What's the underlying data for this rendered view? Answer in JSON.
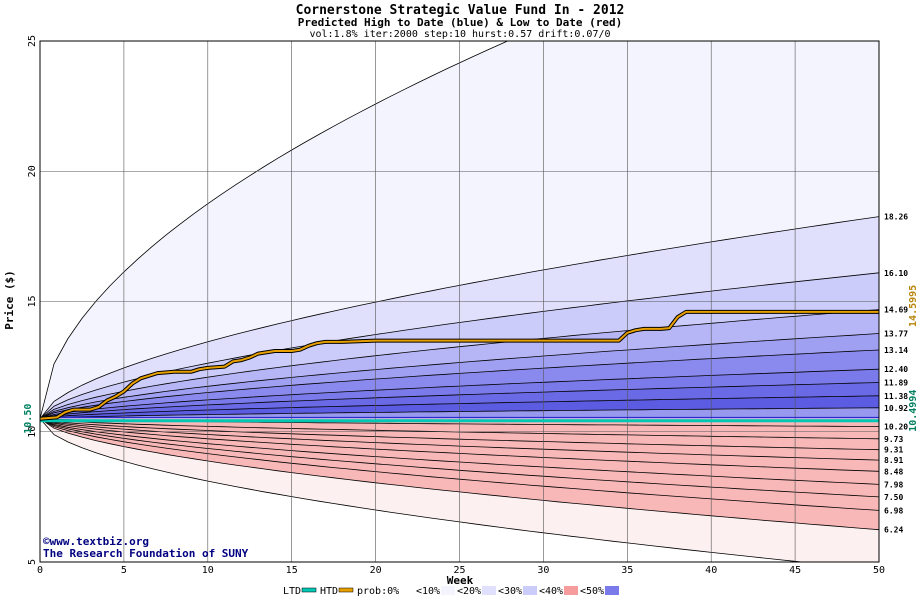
{
  "chart_data": {
    "type": "area",
    "title": "Cornerstone Strategic Value Fund In - 2012",
    "subtitle": "Predicted High to Date (blue) &  Low to Date (red)",
    "params": "vol:1.8% iter:2000 step:10 hurst:0.57 drift:0.07/0",
    "xlabel": "Week",
    "ylabel": "Price ($)",
    "xlim": [
      0,
      50
    ],
    "ylim": [
      5,
      25
    ],
    "x_ticks": [
      "0",
      "5",
      "10",
      "15",
      "20",
      "25",
      "30",
      "35",
      "40",
      "45",
      "50"
    ],
    "y_ticks": [
      "5",
      "10",
      "15",
      "20",
      "25"
    ],
    "grid": true,
    "start_price": 10.5,
    "start_label": "10.50",
    "htd_price": 10.4994,
    "htd_label": "10.4994",
    "htd_label_color": "#008060",
    "ltd_price": 10.55,
    "ltd_htd_colors": {
      "ltd": "#00c8b4",
      "htd": "#2a2ad0"
    },
    "path_label": "14.5995",
    "path_label_color": "#b8860b",
    "path_color": "#e8a000",
    "path": {
      "x": [
        0,
        1,
        1.5,
        2,
        3,
        3.5,
        4,
        4.5,
        5,
        5.5,
        6,
        7,
        8,
        9,
        9.5,
        10,
        11,
        11.5,
        12,
        12.5,
        13,
        14,
        15,
        15.5,
        16,
        16.5,
        17,
        18,
        20,
        22,
        25,
        30,
        34.5,
        35,
        35.5,
        36,
        37,
        37.5,
        38,
        38.5,
        40,
        45,
        50
      ],
      "y": [
        10.5,
        10.55,
        10.75,
        10.85,
        10.85,
        10.95,
        11.2,
        11.35,
        11.55,
        11.85,
        12.05,
        12.25,
        12.3,
        12.3,
        12.4,
        12.45,
        12.5,
        12.7,
        12.75,
        12.85,
        13.0,
        13.1,
        13.1,
        13.15,
        13.3,
        13.4,
        13.45,
        13.45,
        13.5,
        13.5,
        13.5,
        13.5,
        13.5,
        13.8,
        13.9,
        13.95,
        13.95,
        13.98,
        14.4,
        14.6,
        14.6,
        14.6,
        14.6
      ]
    },
    "upper_band_labels": [
      "18.26",
      "16.10",
      "14.69",
      "13.77",
      "13.14",
      "12.40",
      "11.89",
      "11.38",
      "10.92"
    ],
    "lower_band_labels": [
      "10.20",
      "9.73",
      "9.31",
      "8.91",
      "8.48",
      "7.98",
      "7.50",
      "6.98",
      "6.24"
    ],
    "upper_outer_end": 30.5,
    "lower_outer_end": 4.7,
    "upper_band_ends": [
      18.26,
      16.1,
      14.69,
      13.77,
      13.14,
      12.4,
      11.89,
      11.38,
      10.92
    ],
    "lower_band_ends": [
      10.2,
      9.73,
      9.31,
      8.91,
      8.48,
      7.98,
      7.5,
      6.98,
      6.24
    ],
    "upper_band_colors": [
      "#f4f4fe",
      "#e0e0fc",
      "#ccccfa",
      "#b6b6f6",
      "#a0a0f2",
      "#8a8aee",
      "#7a7aea",
      "#6a6ae6",
      "#5c5ce2",
      "#9898ee"
    ],
    "lower_band_colors": [
      "#fdf0f0",
      "#fcd8d8",
      "#fbc4c4",
      "#f9b0b0",
      "#f79c9c",
      "#f58888",
      "#f37878",
      "#f16868",
      "#ef5c5c",
      "#f8b8b8"
    ],
    "legend": [
      {
        "label": "LTD",
        "kind": "line",
        "color": "#00c8b4"
      },
      {
        "label": "HTD",
        "kind": "line",
        "color": "#e8a000"
      },
      {
        "label": "prob:0%",
        "kind": "box",
        "color": "#ffffff"
      },
      {
        "label": "<10%",
        "kind": "box",
        "color": "#f4f4fe"
      },
      {
        "label": "<20%",
        "kind": "box",
        "color": "#e0e0fc"
      },
      {
        "label": "<30%",
        "kind": "box",
        "color": "#ccccfa"
      },
      {
        "label": "<40%",
        "kind": "box",
        "color": "#f79c9c"
      },
      {
        "label": "<50%",
        "kind": "box",
        "color": "#7a7aea"
      }
    ],
    "credit_line1": "©www.textbiz.org",
    "credit_line2": "The Research Foundation of SUNY"
  }
}
